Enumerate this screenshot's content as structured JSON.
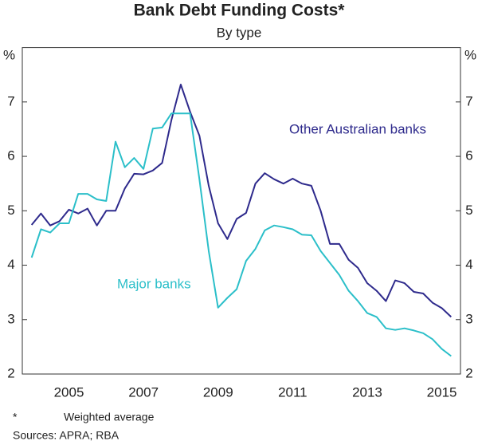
{
  "chart_data": {
    "type": "line",
    "title": "Bank Debt Funding Costs*",
    "subtitle": "By type",
    "y_unit": "%",
    "x": [
      2004.5,
      2004.75,
      2005,
      2005.25,
      2005.5,
      2005.75,
      2006,
      2006.25,
      2006.5,
      2006.75,
      2007,
      2007.25,
      2007.5,
      2007.75,
      2008,
      2008.25,
      2008.5,
      2008.75,
      2009,
      2009.25,
      2009.5,
      2009.75,
      2010,
      2010.25,
      2010.5,
      2010.75,
      2011,
      2011.25,
      2011.5,
      2011.75,
      2012,
      2012.25,
      2012.5,
      2012.75,
      2013,
      2013.25,
      2013.5,
      2013.75,
      2014,
      2014.25,
      2014.5,
      2014.75,
      2015,
      2015.25,
      2015.5,
      2015.75
    ],
    "series": [
      {
        "name": "Other Australian banks",
        "color": "#2e2a8c",
        "values": [
          4.74,
          4.95,
          4.73,
          4.81,
          5.02,
          4.95,
          5.04,
          4.73,
          5.0,
          5.0,
          5.41,
          5.68,
          5.67,
          5.74,
          5.88,
          6.67,
          7.32,
          6.82,
          6.38,
          5.46,
          4.77,
          4.48,
          4.85,
          4.96,
          5.5,
          5.69,
          5.58,
          5.5,
          5.59,
          5.5,
          5.46,
          5.0,
          4.39,
          4.39,
          4.1,
          3.95,
          3.67,
          3.53,
          3.34,
          3.72,
          3.67,
          3.51,
          3.48,
          3.31,
          3.21,
          3.05
        ]
      },
      {
        "name": "Major banks",
        "color": "#2bbfc9",
        "values": [
          4.14,
          4.66,
          4.6,
          4.77,
          4.77,
          5.31,
          5.31,
          5.21,
          5.18,
          6.27,
          5.8,
          5.97,
          5.77,
          6.51,
          6.53,
          6.79,
          6.79,
          6.79,
          5.58,
          4.26,
          3.22,
          3.4,
          3.56,
          4.08,
          4.3,
          4.64,
          4.73,
          4.7,
          4.66,
          4.56,
          4.55,
          4.26,
          4.04,
          3.82,
          3.53,
          3.34,
          3.12,
          3.05,
          2.84,
          2.81,
          2.84,
          2.8,
          2.75,
          2.64,
          2.46,
          2.33
        ]
      }
    ],
    "xlim": [
      2004.25,
      2016
    ],
    "xticks": [
      {
        "value": 2005.5,
        "label": "2005"
      },
      {
        "value": 2007.5,
        "label": "2007"
      },
      {
        "value": 2009.5,
        "label": "2009"
      },
      {
        "value": 2011.5,
        "label": "2011"
      },
      {
        "value": 2013.5,
        "label": "2013"
      },
      {
        "value": 2015.5,
        "label": "2015"
      }
    ],
    "ylim": [
      2,
      8
    ],
    "yticks": [
      2,
      3,
      4,
      5,
      6,
      7
    ],
    "grid": false,
    "footnote": {
      "marker": "*",
      "text": "Weighted average"
    },
    "sources": "Sources:  APRA; RBA"
  }
}
